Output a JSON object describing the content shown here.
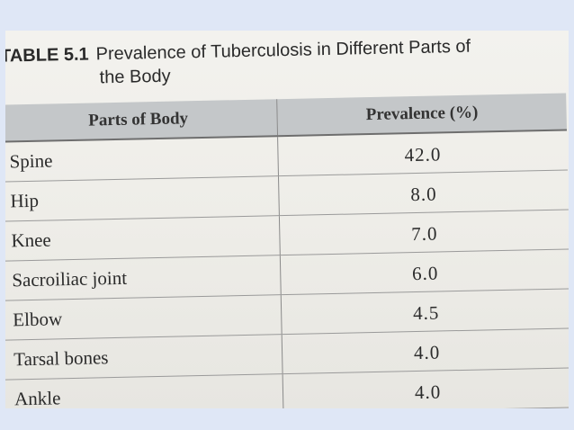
{
  "table": {
    "label": "TABLE 5.1",
    "title_line1": "Prevalence of Tuberculosis in Different Parts of",
    "title_line2": "the Body",
    "headers": [
      "Parts of Body",
      "Prevalence (%)"
    ],
    "rows": [
      {
        "part": "Spine",
        "prevalence": "42.0"
      },
      {
        "part": "Hip",
        "prevalence": "8.0"
      },
      {
        "part": "Knee",
        "prevalence": "7.0"
      },
      {
        "part": "Sacroiliac joint",
        "prevalence": "6.0"
      },
      {
        "part": "Elbow",
        "prevalence": "4.5"
      },
      {
        "part": "Tarsal bones",
        "prevalence": "4.0"
      },
      {
        "part": "Ankle",
        "prevalence": "4.0"
      }
    ]
  }
}
